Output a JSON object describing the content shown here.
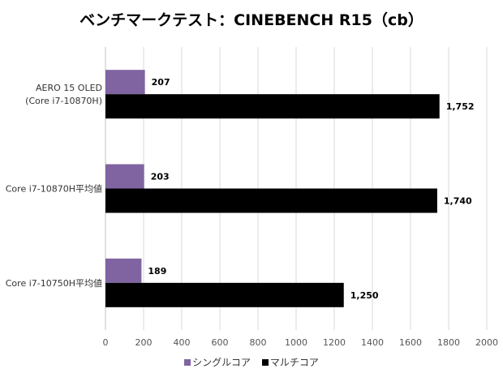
{
  "chart_data": {
    "type": "bar",
    "orientation": "horizontal",
    "title": "ベンチマークテスト：CINEBENCH R15（cb）",
    "categories": [
      [
        "AERO 15 OLED",
        "(Core i7-10870H)"
      ],
      [
        "Core i7-10870H平均値"
      ],
      [
        "Core i7-10750H平均値"
      ]
    ],
    "series": [
      {
        "name": "シングルコア",
        "color": "#8064a2",
        "values": [
          207,
          203,
          189
        ],
        "labels": [
          "207",
          "203",
          "189"
        ]
      },
      {
        "name": "マルチコア",
        "color": "#000000",
        "values": [
          1752,
          1740,
          1250
        ],
        "labels": [
          "1,752",
          "1,740",
          "1,250"
        ]
      }
    ],
    "xlim": [
      0,
      2000
    ],
    "ticks": [
      "0",
      "200",
      "400",
      "600",
      "800",
      "1000",
      "1200",
      "1400",
      "1600",
      "1800",
      "2000"
    ],
    "grid": true,
    "legend_position": "bottom"
  }
}
